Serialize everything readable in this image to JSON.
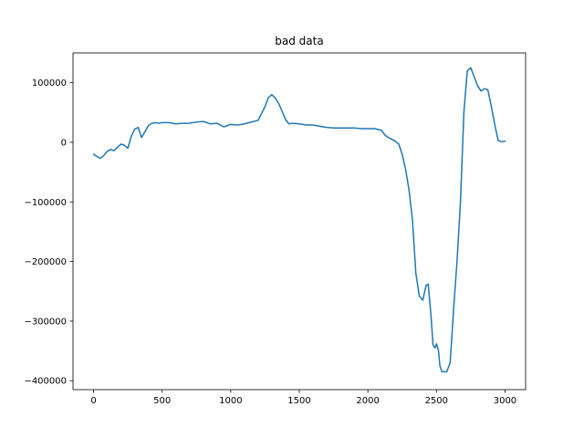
{
  "chart_data": {
    "type": "line",
    "title": "bad data",
    "xlabel": "",
    "ylabel": "",
    "xlim": [
      -150,
      3150
    ],
    "ylim": [
      -415000,
      150000
    ],
    "xticks": [
      0,
      500,
      1000,
      1500,
      2000,
      2500,
      3000
    ],
    "yticks": [
      100000,
      0,
      -100000,
      -200000,
      -300000,
      -400000
    ],
    "xtick_labels": [
      "0",
      "500",
      "1000",
      "1500",
      "2000",
      "2500",
      "3000"
    ],
    "ytick_labels": [
      "100000",
      "0",
      "−100000",
      "−200000",
      "−300000",
      "−400000"
    ],
    "grid": false,
    "series": [
      {
        "color": "#1f77b4",
        "x": [
          0,
          25,
          50,
          75,
          100,
          125,
          150,
          175,
          200,
          225,
          250,
          275,
          300,
          325,
          350,
          375,
          400,
          425,
          450,
          475,
          500,
          550,
          600,
          650,
          700,
          750,
          800,
          850,
          900,
          950,
          1000,
          1050,
          1100,
          1150,
          1200,
          1250,
          1275,
          1300,
          1325,
          1350,
          1375,
          1400,
          1425,
          1450,
          1500,
          1550,
          1600,
          1650,
          1700,
          1750,
          1800,
          1850,
          1900,
          1950,
          2000,
          2050,
          2100,
          2125,
          2150,
          2175,
          2200,
          2225,
          2250,
          2275,
          2300,
          2325,
          2350,
          2375,
          2400,
          2425,
          2440,
          2460,
          2475,
          2490,
          2500,
          2515,
          2525,
          2540,
          2550,
          2575,
          2600,
          2625,
          2650,
          2675,
          2700,
          2725,
          2750,
          2775,
          2800,
          2825,
          2850,
          2875,
          2900,
          2925,
          2950,
          2975,
          3000
        ],
        "y": [
          -20000,
          -24000,
          -27000,
          -22000,
          -15000,
          -12000,
          -14000,
          -8000,
          -3000,
          -5000,
          -10000,
          10000,
          22000,
          25000,
          8000,
          18000,
          28000,
          32000,
          33000,
          32000,
          33000,
          33000,
          31000,
          32000,
          32000,
          34000,
          35000,
          31000,
          32000,
          26000,
          30000,
          29000,
          31000,
          34000,
          37000,
          60000,
          75000,
          80000,
          74000,
          65000,
          52000,
          38000,
          31000,
          32000,
          31000,
          29000,
          29000,
          27000,
          25000,
          24000,
          24000,
          24000,
          24000,
          23000,
          23000,
          23000,
          20000,
          12000,
          8000,
          5000,
          2000,
          -3000,
          -20000,
          -45000,
          -80000,
          -130000,
          -220000,
          -258000,
          -265000,
          -240000,
          -238000,
          -290000,
          -340000,
          -345000,
          -338000,
          -350000,
          -375000,
          -385000,
          -385000,
          -385000,
          -370000,
          -280000,
          -200000,
          -100000,
          50000,
          120000,
          125000,
          110000,
          95000,
          86000,
          90000,
          88000,
          60000,
          30000,
          3000,
          1000,
          2000
        ]
      }
    ]
  }
}
